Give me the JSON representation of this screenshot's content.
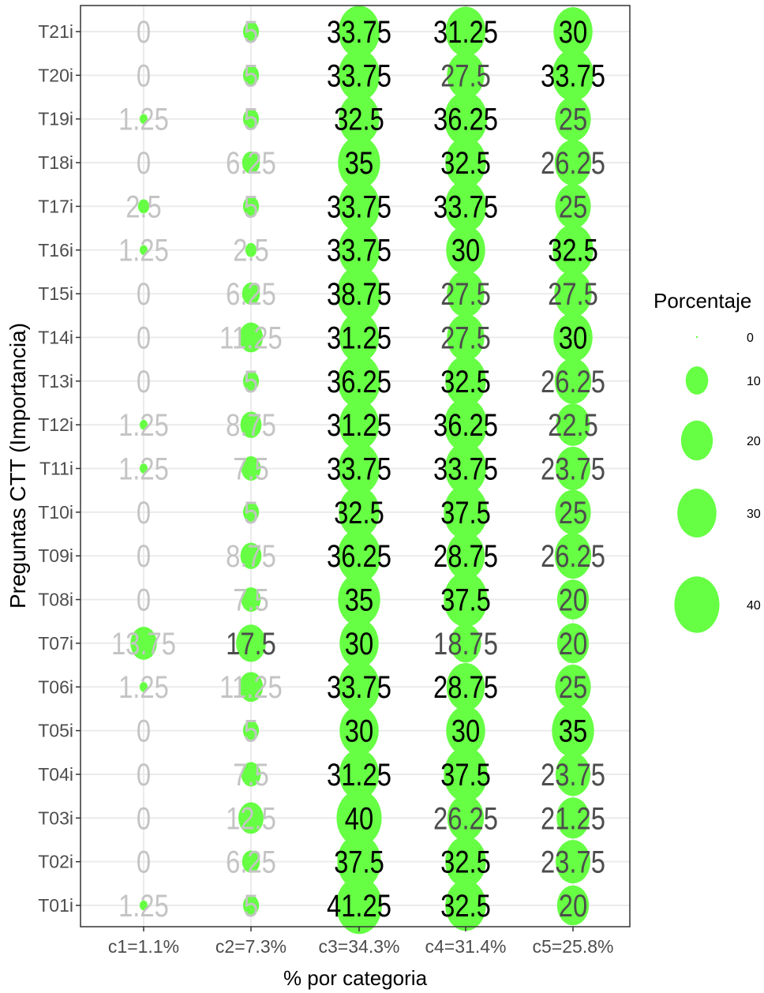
{
  "chart_data": {
    "type": "scatter",
    "xlabel": "% por categoria",
    "ylabel": "Preguntas CTT (Importancia)",
    "categories": [
      "c1=1.1%",
      "c2=7.3%",
      "c3=34.3%",
      "c4=31.4%",
      "c5=25.8%"
    ],
    "rows": [
      "T01i",
      "T02i",
      "T03i",
      "T04i",
      "T05i",
      "T06i",
      "T07i",
      "T08i",
      "T09i",
      "T10i",
      "T11i",
      "T12i",
      "T13i",
      "T14i",
      "T15i",
      "T16i",
      "T17i",
      "T18i",
      "T19i",
      "T20i",
      "T21i"
    ],
    "values": [
      [
        1.25,
        5,
        41.25,
        32.5,
        20
      ],
      [
        0,
        6.25,
        37.5,
        32.5,
        23.75
      ],
      [
        0,
        12.5,
        40,
        26.25,
        21.25
      ],
      [
        0,
        7.5,
        31.25,
        37.5,
        23.75
      ],
      [
        0,
        5,
        30,
        30,
        35
      ],
      [
        1.25,
        11.25,
        33.75,
        28.75,
        25
      ],
      [
        13.75,
        17.5,
        30,
        18.75,
        20
      ],
      [
        0,
        7.5,
        35,
        37.5,
        20
      ],
      [
        0,
        8.75,
        36.25,
        28.75,
        26.25
      ],
      [
        0,
        5,
        32.5,
        37.5,
        25
      ],
      [
        1.25,
        7.5,
        33.75,
        33.75,
        23.75
      ],
      [
        1.25,
        8.75,
        31.25,
        36.25,
        22.5
      ],
      [
        0,
        5,
        36.25,
        32.5,
        26.25
      ],
      [
        0,
        11.25,
        31.25,
        27.5,
        30
      ],
      [
        0,
        6.25,
        38.75,
        27.5,
        27.5
      ],
      [
        1.25,
        2.5,
        33.75,
        30,
        32.5
      ],
      [
        2.5,
        5,
        33.75,
        33.75,
        25
      ],
      [
        0,
        6.25,
        35,
        32.5,
        26.25
      ],
      [
        1.25,
        5,
        32.5,
        36.25,
        25
      ],
      [
        0,
        5,
        33.75,
        27.5,
        33.75
      ],
      [
        0,
        5,
        33.75,
        31.25,
        30
      ]
    ],
    "value_labels": [
      [
        "1.25",
        "5",
        "41.25",
        "32.5",
        "20"
      ],
      [
        "0",
        "6.25",
        "37.5",
        "32.5",
        "23.75"
      ],
      [
        "0",
        "12.5",
        "40",
        "26.25",
        "21.25"
      ],
      [
        "0",
        "7.5",
        "31.25",
        "37.5",
        "23.75"
      ],
      [
        "0",
        "5",
        "30",
        "30",
        "35"
      ],
      [
        "1.25",
        "11.25",
        "33.75",
        "28.75",
        "25"
      ],
      [
        "13.75",
        "17.5",
        "30",
        "18.75",
        "20"
      ],
      [
        "0",
        "7.5",
        "35",
        "37.5",
        "20"
      ],
      [
        "0",
        "8.75",
        "36.25",
        "28.75",
        "26.25"
      ],
      [
        "0",
        "5",
        "32.5",
        "37.5",
        "25"
      ],
      [
        "1.25",
        "7.5",
        "33.75",
        "33.75",
        "23.75"
      ],
      [
        "1.25",
        "8.75",
        "31.25",
        "36.25",
        "22.5"
      ],
      [
        "0",
        "5",
        "36.25",
        "32.5",
        "26.25"
      ],
      [
        "0",
        "11.25",
        "31.25",
        "27.5",
        "30"
      ],
      [
        "0",
        "6.25",
        "38.75",
        "27.5",
        "27.5"
      ],
      [
        "1.25",
        "2.5",
        "33.75",
        "30",
        "32.5"
      ],
      [
        "2.5",
        "5",
        "33.75",
        "33.75",
        "25"
      ],
      [
        "0",
        "6.25",
        "35",
        "32.5",
        "26.25"
      ],
      [
        "1.25",
        "5",
        "32.5",
        "36.25",
        "25"
      ],
      [
        "0",
        "5",
        "33.75",
        "27.5",
        "33.75"
      ],
      [
        "0",
        "5",
        "33.75",
        "31.25",
        "30"
      ]
    ],
    "legend": {
      "title": "Porcentaje",
      "position": "right",
      "breaks": [
        0,
        10,
        20,
        30,
        40
      ],
      "labels": [
        "0",
        "10",
        "20",
        "30",
        "40"
      ]
    },
    "grid": true,
    "point_color": "#66ff44"
  }
}
